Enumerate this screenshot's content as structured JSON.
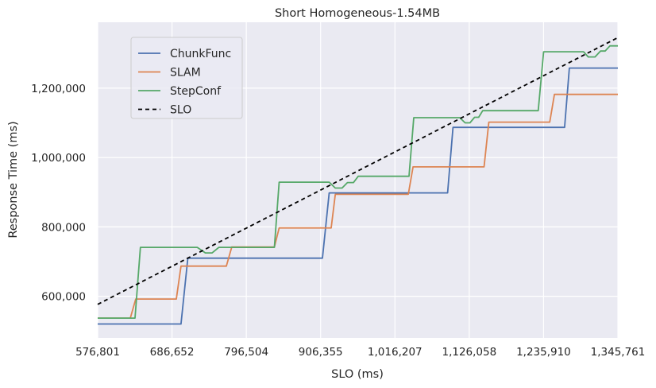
{
  "chart_data": {
    "type": "line",
    "title": "Short Homogeneous-1.54MB",
    "xlabel": "SLO (ms)",
    "ylabel": "Response Time (ms)",
    "xlim": [
      576801,
      1345761
    ],
    "ylim": [
      480000,
      1390000
    ],
    "x_ticks": [
      576801,
      686652,
      796504,
      906355,
      1016207,
      1126058,
      1235910,
      1345761
    ],
    "x_tick_labels": [
      "576,801",
      "686,652",
      "796,504",
      "906,355",
      "1,016,207",
      "1,126,058",
      "1,235,910",
      "1,345,761"
    ],
    "y_ticks": [
      600000,
      800000,
      1000000,
      1200000
    ],
    "y_tick_labels": [
      "600,000",
      "800,000",
      "1,000,000",
      "1,200,000"
    ],
    "grid": true,
    "legend_position": "top-left",
    "series": [
      {
        "name": "ChunkFunc",
        "color": "#4c72b0",
        "style": "solid",
        "points": [
          [
            576801,
            520000
          ],
          [
            700000,
            520000
          ],
          [
            710000,
            710000
          ],
          [
            909000,
            710000
          ],
          [
            919000,
            898000
          ],
          [
            1094000,
            898000
          ],
          [
            1102000,
            1087000
          ],
          [
            1267000,
            1087000
          ],
          [
            1274000,
            1258000
          ],
          [
            1345761,
            1258000
          ]
        ]
      },
      {
        "name": "SLAM",
        "color": "#dd8452",
        "style": "solid",
        "points": [
          [
            576801,
            537000
          ],
          [
            625000,
            537000
          ],
          [
            633000,
            592000
          ],
          [
            693000,
            592000
          ],
          [
            700000,
            687000
          ],
          [
            767000,
            687000
          ],
          [
            775000,
            742000
          ],
          [
            838000,
            742000
          ],
          [
            845000,
            797000
          ],
          [
            922000,
            797000
          ],
          [
            928000,
            894000
          ],
          [
            1036000,
            894000
          ],
          [
            1043000,
            973000
          ],
          [
            1148000,
            973000
          ],
          [
            1155000,
            1102000
          ],
          [
            1245000,
            1102000
          ],
          [
            1252000,
            1182000
          ],
          [
            1345761,
            1182000
          ]
        ]
      },
      {
        "name": "StepConf",
        "color": "#55a868",
        "style": "solid",
        "points": [
          [
            576801,
            537000
          ],
          [
            632000,
            537000
          ],
          [
            640000,
            741000
          ],
          [
            724000,
            741000
          ],
          [
            736000,
            725000
          ],
          [
            746000,
            725000
          ],
          [
            756000,
            741000
          ],
          [
            838000,
            741000
          ],
          [
            845000,
            929000
          ],
          [
            919000,
            929000
          ],
          [
            928000,
            912000
          ],
          [
            938000,
            912000
          ],
          [
            946000,
            928000
          ],
          [
            955000,
            928000
          ],
          [
            962000,
            946000
          ],
          [
            1037000,
            946000
          ],
          [
            1044000,
            1115000
          ],
          [
            1112000,
            1115000
          ],
          [
            1120000,
            1100000
          ],
          [
            1127000,
            1100000
          ],
          [
            1134000,
            1116000
          ],
          [
            1140000,
            1116000
          ],
          [
            1146000,
            1135000
          ],
          [
            1228000,
            1135000
          ],
          [
            1236000,
            1305000
          ],
          [
            1295000,
            1305000
          ],
          [
            1302000,
            1290000
          ],
          [
            1312000,
            1290000
          ],
          [
            1320000,
            1307000
          ],
          [
            1327000,
            1307000
          ],
          [
            1334000,
            1322000
          ],
          [
            1345761,
            1322000
          ]
        ]
      },
      {
        "name": "SLO",
        "color": "#000000",
        "style": "dashed",
        "points": [
          [
            576801,
            576801
          ],
          [
            1345761,
            1345761
          ]
        ]
      }
    ]
  }
}
